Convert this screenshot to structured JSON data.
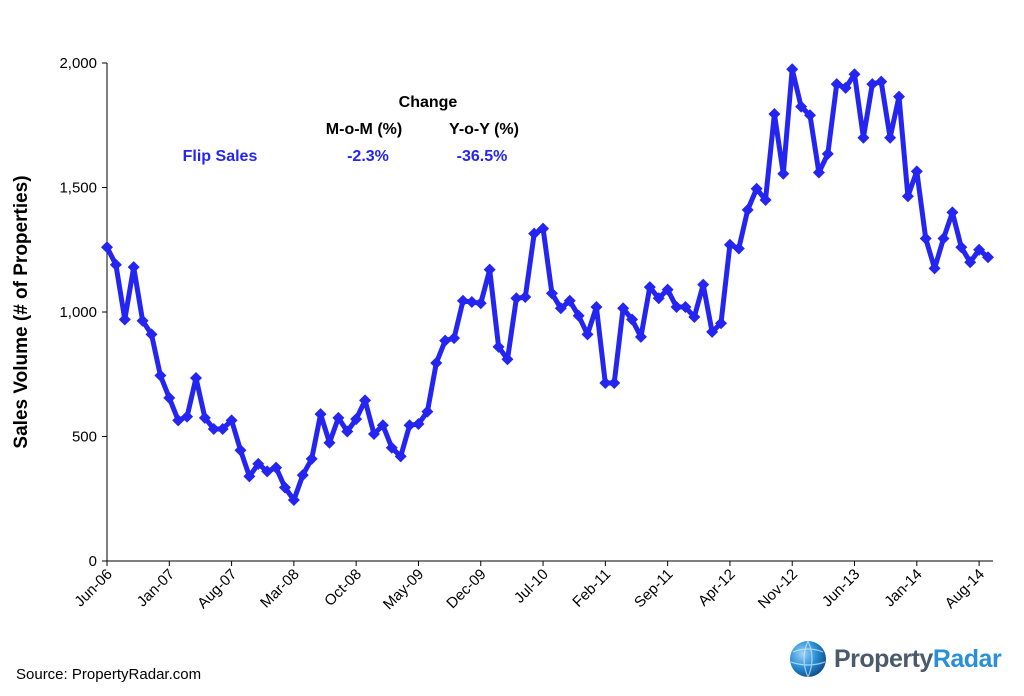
{
  "chart_data": {
    "type": "line",
    "ylabel": "Sales Volume (# of Properties)",
    "ylim": [
      0,
      2000
    ],
    "yticks": [
      0,
      500,
      1000,
      1500,
      2000
    ],
    "ytick_labels": [
      "0",
      "500",
      "1,000",
      "1,500",
      "2,000"
    ],
    "xtick_labels": [
      "Jun-06",
      "Jan-07",
      "Aug-07",
      "Mar-08",
      "Oct-08",
      "May-09",
      "Dec-09",
      "Jul-10",
      "Feb-11",
      "Sep-11",
      "Apr-12",
      "Nov-12",
      "Jun-13",
      "Jan-14",
      "Aug-14"
    ],
    "grid": false,
    "series": [
      {
        "name": "Flip Sales",
        "color": "#2525f2",
        "marker": "diamond",
        "values": [
          1260,
          1190,
          970,
          1180,
          965,
          910,
          745,
          655,
          565,
          580,
          735,
          575,
          530,
          530,
          565,
          445,
          340,
          390,
          360,
          375,
          295,
          245,
          345,
          410,
          590,
          475,
          575,
          520,
          570,
          645,
          510,
          545,
          455,
          420,
          545,
          550,
          600,
          795,
          885,
          895,
          1045,
          1040,
          1035,
          1170,
          860,
          810,
          1055,
          1060,
          1315,
          1335,
          1075,
          1015,
          1045,
          985,
          910,
          1020,
          715,
          715,
          1015,
          970,
          900,
          1100,
          1055,
          1090,
          1020,
          1020,
          980,
          1110,
          920,
          955,
          1270,
          1255,
          1410,
          1495,
          1450,
          1795,
          1555,
          1975,
          1825,
          1790,
          1560,
          1635,
          1915,
          1900,
          1955,
          1700,
          1915,
          1925,
          1700,
          1865,
          1465,
          1565,
          1295,
          1175,
          1295,
          1400,
          1260,
          1200,
          1250,
          1220
        ]
      }
    ],
    "annotation": {
      "header": "Change",
      "col1_header": "M-o-M (%)",
      "col2_header": "Y-o-Y (%)",
      "row_label": "Flip Sales",
      "mom": "-2.3%",
      "yoy": "-36.5%"
    }
  },
  "footer": {
    "source": "Source: PropertyRadar.com",
    "brand_part1": "Property",
    "brand_part2": "Radar"
  }
}
